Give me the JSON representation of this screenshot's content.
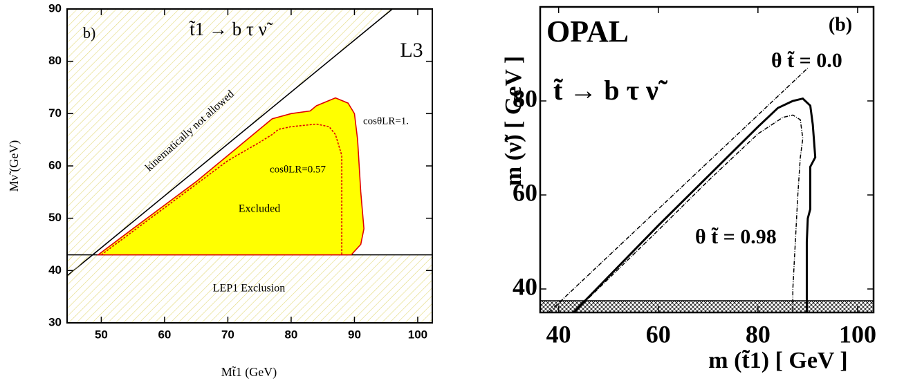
{
  "chart_data": [
    {
      "type": "line",
      "x_label": "Mt̃1 (GeV)",
      "y_label": "Mν̃ (GeV)",
      "xlim": [
        44.6,
        102.3
      ],
      "ylim": [
        30,
        90
      ],
      "xticks": [
        50,
        60,
        70,
        80,
        90,
        100
      ],
      "yticks": [
        30,
        40,
        50,
        60,
        70,
        80,
        90
      ],
      "annotations": [
        "b)",
        "t̃1 → b τ ν̃",
        "L3",
        "kinematically not allowed",
        "Excluded",
        "LEP1 Exclusion"
      ],
      "series": [
        {
          "color": "#000000",
          "hatch": "above",
          "x": [
            44.6,
            96
          ],
          "values": [
            39,
            90
          ]
        },
        {
          "color": "#000000",
          "hatch": "below",
          "x": [
            44.6,
            102.3
          ],
          "values": [
            43,
            43
          ]
        },
        {
          "name": "cosθLR=1.",
          "color": "#e00000",
          "fill": "#ffff00",
          "x": [
            49.5,
            55,
            60,
            65,
            70,
            75,
            77,
            80,
            83,
            84,
            86,
            87,
            88,
            89,
            90,
            90.5,
            91,
            91.5,
            91,
            89.5
          ],
          "values": [
            43,
            48,
            52.5,
            57,
            62,
            67,
            69,
            70,
            70.5,
            71.5,
            72.5,
            73,
            72.5,
            72,
            70,
            65,
            55,
            48,
            45,
            43
          ]
        },
        {
          "name": "cosθLR=0.57",
          "color": "#e00000",
          "dash": true,
          "x": [
            50,
            60,
            70,
            75,
            77,
            78,
            80,
            84,
            86,
            87,
            88,
            88,
            88
          ],
          "values": [
            43,
            52,
            61,
            64.5,
            66,
            67,
            67.5,
            68,
            67.5,
            66,
            62,
            55,
            43
          ]
        }
      ]
    },
    {
      "type": "line",
      "x_label": "m (t̃1) [ GeV ]",
      "y_label": "m (ν̃) [ GeV ]",
      "xlim": [
        36.3,
        103.2
      ],
      "ylim": [
        35,
        100
      ],
      "xticks": [
        40,
        60,
        80,
        100
      ],
      "yticks": [
        40,
        60,
        80
      ],
      "annotations": [
        "OPAL",
        "(b)",
        "t̃ → b τ ν̃"
      ],
      "series": [
        {
          "color": "#000000",
          "hatch": "below",
          "x": [
            36.3,
            103.2
          ],
          "values": [
            37.5,
            37.5
          ]
        },
        {
          "color": "#000000",
          "dash": true,
          "x": [
            38,
            90
          ],
          "values": [
            35,
            87
          ]
        },
        {
          "name": "θ t̃ = 0.0",
          "color": "#000000",
          "x": [
            43,
            60,
            70,
            80,
            84,
            87,
            89,
            90.5,
            91,
            91.5,
            90.5,
            90.5,
            90,
            89.8,
            89.8
          ],
          "values": [
            35,
            53.5,
            64,
            74.5,
            78.5,
            80,
            80.5,
            79,
            75,
            68,
            66,
            57,
            55,
            50,
            35
          ]
        },
        {
          "name": "θ t̃ = 0.98",
          "color": "#000000",
          "dash": true,
          "x": [
            45,
            60,
            70,
            80,
            85,
            87,
            88.5,
            89,
            88.5,
            88,
            87.5,
            87,
            87
          ],
          "values": [
            37,
            52.5,
            63,
            73,
            76.5,
            77,
            76,
            72,
            68,
            60,
            50,
            40,
            35
          ]
        }
      ]
    }
  ]
}
